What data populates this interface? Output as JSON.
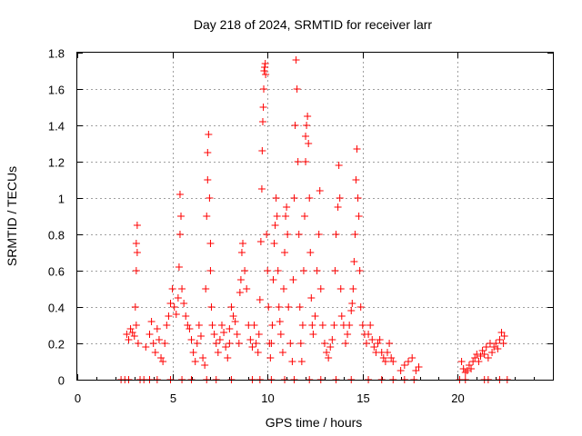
{
  "chart_data": {
    "type": "scatter",
    "title": "Day 218 of 2024, SRMTID for receiver larr",
    "xlabel": "GPS time / hours",
    "ylabel": "SRMTID / TECUs",
    "xlim": [
      0,
      25
    ],
    "ylim": [
      0,
      1.8
    ],
    "xticks": [
      0,
      5,
      10,
      15,
      20
    ],
    "yticks": [
      0,
      0.2,
      0.4,
      0.6,
      0.8,
      1,
      1.2,
      1.4,
      1.6,
      1.8
    ],
    "xtick_labels": [
      "0",
      "5",
      "10",
      "15",
      "20"
    ],
    "ytick_labels": [
      "0",
      "0.2",
      "0.4",
      "0.6",
      "0.8",
      "1",
      "1.2",
      "1.4",
      "1.6",
      "1.8"
    ],
    "grid": true,
    "marker": "plus",
    "color": "#ff0000",
    "series": [
      {
        "name": "SRMTID",
        "points": [
          [
            2.3,
            0
          ],
          [
            2.5,
            0
          ],
          [
            2.7,
            0
          ],
          [
            3.3,
            0
          ],
          [
            3.5,
            0
          ],
          [
            3.8,
            0
          ],
          [
            4.2,
            0
          ],
          [
            4.9,
            0
          ],
          [
            5.5,
            0
          ],
          [
            6.0,
            0
          ],
          [
            6.8,
            0
          ],
          [
            7.3,
            0
          ],
          [
            8.1,
            0
          ],
          [
            9.2,
            0
          ],
          [
            9.6,
            0
          ],
          [
            10.2,
            0
          ],
          [
            10.9,
            0
          ],
          [
            11.4,
            0
          ],
          [
            12.2,
            0
          ],
          [
            12.8,
            0
          ],
          [
            13.6,
            0
          ],
          [
            14.4,
            0
          ],
          [
            15.3,
            0
          ],
          [
            16.0,
            0
          ],
          [
            16.6,
            0
          ],
          [
            17.2,
            0
          ],
          [
            17.7,
            0
          ],
          [
            20.1,
            0
          ],
          [
            20.4,
            0
          ],
          [
            21.4,
            0
          ],
          [
            21.6,
            0
          ],
          [
            22.2,
            0
          ],
          [
            22.6,
            0
          ],
          [
            2.6,
            0.25
          ],
          [
            2.7,
            0.22
          ],
          [
            2.8,
            0.28
          ],
          [
            2.9,
            0.26
          ],
          [
            3.0,
            0.24
          ],
          [
            3.05,
            0.4
          ],
          [
            3.1,
            0.6
          ],
          [
            3.1,
            0.75
          ],
          [
            3.15,
            0.85
          ],
          [
            3.15,
            0.7
          ],
          [
            3.1,
            0.3
          ],
          [
            3.2,
            0.2
          ],
          [
            3.6,
            0.18
          ],
          [
            3.8,
            0.25
          ],
          [
            3.9,
            0.32
          ],
          [
            4.0,
            0.2
          ],
          [
            4.1,
            0.15
          ],
          [
            4.2,
            0.28
          ],
          [
            4.3,
            0.22
          ],
          [
            4.4,
            0.12
          ],
          [
            4.5,
            0.1
          ],
          [
            4.6,
            0.2
          ],
          [
            4.7,
            0.3
          ],
          [
            4.8,
            0.35
          ],
          [
            4.9,
            0.42
          ],
          [
            5.0,
            0.5
          ],
          [
            5.1,
            0.4
          ],
          [
            5.2,
            0.36
          ],
          [
            5.3,
            0.45
          ],
          [
            5.35,
            0.62
          ],
          [
            5.4,
            0.8
          ],
          [
            5.4,
            1.02
          ],
          [
            5.45,
            0.9
          ],
          [
            5.5,
            0.5
          ],
          [
            5.6,
            0.42
          ],
          [
            5.7,
            0.35
          ],
          [
            5.8,
            0.3
          ],
          [
            5.9,
            0.28
          ],
          [
            6.0,
            0.22
          ],
          [
            6.1,
            0.15
          ],
          [
            6.2,
            0.1
          ],
          [
            6.3,
            0.2
          ],
          [
            6.4,
            0.3
          ],
          [
            6.5,
            0.24
          ],
          [
            6.6,
            0.12
          ],
          [
            6.7,
            0.08
          ],
          [
            6.75,
            0.5
          ],
          [
            6.8,
            0.9
          ],
          [
            6.85,
            1.1
          ],
          [
            6.85,
            1.25
          ],
          [
            6.9,
            1.35
          ],
          [
            6.95,
            1.0
          ],
          [
            7.0,
            0.75
          ],
          [
            7.0,
            0.6
          ],
          [
            7.05,
            0.4
          ],
          [
            7.1,
            0.3
          ],
          [
            7.2,
            0.25
          ],
          [
            7.3,
            0.2
          ],
          [
            7.4,
            0.15
          ],
          [
            7.5,
            0.22
          ],
          [
            7.6,
            0.3
          ],
          [
            7.7,
            0.26
          ],
          [
            7.8,
            0.18
          ],
          [
            7.9,
            0.12
          ],
          [
            8.0,
            0.2
          ],
          [
            8.0,
            0.28
          ],
          [
            8.1,
            0.4
          ],
          [
            8.2,
            0.35
          ],
          [
            8.3,
            0.32
          ],
          [
            8.4,
            0.25
          ],
          [
            8.5,
            0.2
          ],
          [
            8.55,
            0.48
          ],
          [
            8.6,
            0.55
          ],
          [
            8.65,
            0.7
          ],
          [
            8.7,
            0.75
          ],
          [
            8.8,
            0.6
          ],
          [
            8.9,
            0.5
          ],
          [
            9.0,
            0.3
          ],
          [
            9.1,
            0.22
          ],
          [
            9.2,
            0.18
          ],
          [
            9.3,
            0.3
          ],
          [
            9.4,
            0.2
          ],
          [
            9.5,
            0.15
          ],
          [
            9.55,
            0.25
          ],
          [
            9.6,
            0.44
          ],
          [
            9.65,
            0.76
          ],
          [
            9.7,
            1.05
          ],
          [
            9.72,
            1.26
          ],
          [
            9.75,
            1.42
          ],
          [
            9.78,
            1.5
          ],
          [
            9.8,
            1.6
          ],
          [
            9.82,
            1.7
          ],
          [
            9.85,
            1.72
          ],
          [
            9.88,
            1.74
          ],
          [
            9.9,
            1.68
          ],
          [
            9.95,
            0.8
          ],
          [
            10.0,
            0.6
          ],
          [
            10.05,
            0.4
          ],
          [
            10.1,
            0.2
          ],
          [
            10.15,
            0.12
          ],
          [
            10.2,
            0.2
          ],
          [
            10.25,
            0.3
          ],
          [
            10.3,
            0.55
          ],
          [
            10.35,
            0.75
          ],
          [
            10.4,
            0.85
          ],
          [
            10.45,
            1.0
          ],
          [
            10.5,
            0.9
          ],
          [
            10.55,
            0.6
          ],
          [
            10.6,
            0.4
          ],
          [
            10.65,
            0.32
          ],
          [
            10.7,
            0.25
          ],
          [
            10.8,
            0.15
          ],
          [
            10.85,
            0.5
          ],
          [
            10.9,
            0.7
          ],
          [
            10.95,
            0.9
          ],
          [
            11.0,
            0.95
          ],
          [
            11.05,
            0.8
          ],
          [
            11.1,
            0.4
          ],
          [
            11.2,
            0.2
          ],
          [
            11.3,
            0.1
          ],
          [
            11.35,
            0.55
          ],
          [
            11.4,
            1.0
          ],
          [
            11.45,
            1.4
          ],
          [
            11.5,
            1.76
          ],
          [
            11.55,
            1.6
          ],
          [
            11.6,
            1.2
          ],
          [
            11.65,
            0.8
          ],
          [
            11.7,
            0.4
          ],
          [
            11.75,
            0.2
          ],
          [
            11.8,
            0.1
          ],
          [
            11.85,
            0.3
          ],
          [
            11.9,
            0.6
          ],
          [
            11.95,
            0.9
          ],
          [
            12.0,
            1.2
          ],
          [
            12.0,
            1.34
          ],
          [
            12.05,
            1.4
          ],
          [
            12.1,
            1.45
          ],
          [
            12.15,
            1.3
          ],
          [
            12.2,
            1.0
          ],
          [
            12.25,
            0.7
          ],
          [
            12.3,
            0.45
          ],
          [
            12.35,
            0.3
          ],
          [
            12.4,
            0.25
          ],
          [
            12.5,
            0.35
          ],
          [
            12.6,
            0.6
          ],
          [
            12.7,
            0.8
          ],
          [
            12.75,
            1.04
          ],
          [
            12.8,
            0.5
          ],
          [
            12.9,
            0.3
          ],
          [
            13.0,
            0.2
          ],
          [
            13.1,
            0.15
          ],
          [
            13.2,
            0.12
          ],
          [
            13.3,
            0.18
          ],
          [
            13.4,
            0.22
          ],
          [
            13.5,
            0.3
          ],
          [
            13.55,
            0.6
          ],
          [
            13.6,
            0.8
          ],
          [
            13.7,
            0.95
          ],
          [
            13.75,
            1.18
          ],
          [
            13.8,
            1.0
          ],
          [
            13.85,
            0.5
          ],
          [
            13.9,
            0.35
          ],
          [
            14.0,
            0.3
          ],
          [
            14.1,
            0.2
          ],
          [
            14.2,
            0.25
          ],
          [
            14.3,
            0.3
          ],
          [
            14.4,
            0.38
          ],
          [
            14.45,
            0.42
          ],
          [
            14.5,
            0.5
          ],
          [
            14.55,
            0.65
          ],
          [
            14.6,
            0.8
          ],
          [
            14.65,
            1.1
          ],
          [
            14.7,
            1.27
          ],
          [
            14.75,
            1.0
          ],
          [
            14.8,
            0.9
          ],
          [
            14.85,
            0.6
          ],
          [
            14.9,
            0.4
          ],
          [
            15.0,
            0.3
          ],
          [
            15.1,
            0.25
          ],
          [
            15.2,
            0.2
          ],
          [
            15.3,
            0.25
          ],
          [
            15.4,
            0.3
          ],
          [
            15.5,
            0.22
          ],
          [
            15.6,
            0.18
          ],
          [
            15.7,
            0.15
          ],
          [
            15.8,
            0.2
          ],
          [
            15.9,
            0.22
          ],
          [
            16.0,
            0.15
          ],
          [
            16.1,
            0.12
          ],
          [
            16.2,
            0.1
          ],
          [
            16.3,
            0.15
          ],
          [
            16.4,
            0.2
          ],
          [
            16.5,
            0.12
          ],
          [
            16.6,
            0.1
          ],
          [
            17.0,
            0.05
          ],
          [
            17.2,
            0.08
          ],
          [
            17.4,
            0.1
          ],
          [
            17.6,
            0.12
          ],
          [
            17.8,
            0.05
          ],
          [
            17.95,
            0.07
          ],
          [
            20.2,
            0.1
          ],
          [
            20.3,
            0.06
          ],
          [
            20.4,
            0.04
          ],
          [
            20.5,
            0.05
          ],
          [
            20.6,
            0.08
          ],
          [
            20.7,
            0.06
          ],
          [
            20.8,
            0.1
          ],
          [
            20.9,
            0.12
          ],
          [
            21.0,
            0.14
          ],
          [
            21.1,
            0.1
          ],
          [
            21.2,
            0.13
          ],
          [
            21.3,
            0.16
          ],
          [
            21.4,
            0.14
          ],
          [
            21.5,
            0.18
          ],
          [
            21.6,
            0.12
          ],
          [
            21.7,
            0.2
          ],
          [
            21.8,
            0.15
          ],
          [
            21.9,
            0.18
          ],
          [
            22.0,
            0.2
          ],
          [
            22.1,
            0.17
          ],
          [
            22.2,
            0.22
          ],
          [
            22.3,
            0.26
          ],
          [
            22.4,
            0.2
          ],
          [
            22.45,
            0.24
          ]
        ]
      }
    ]
  }
}
